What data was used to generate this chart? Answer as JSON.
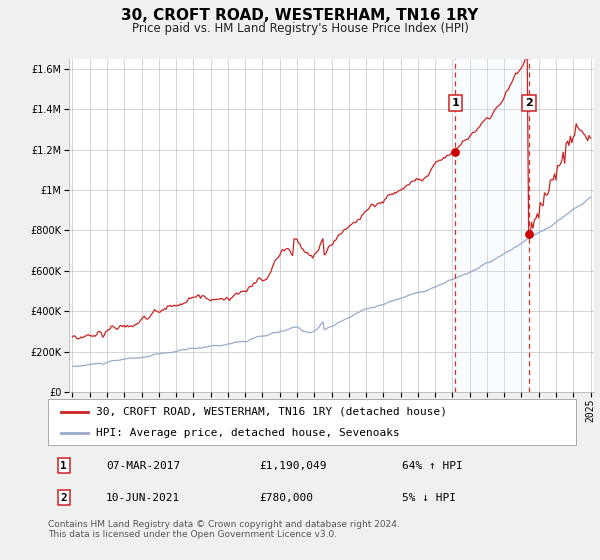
{
  "title": "30, CROFT ROAD, WESTERHAM, TN16 1RY",
  "subtitle": "Price paid vs. HM Land Registry's House Price Index (HPI)",
  "ylim": [
    0,
    1650000
  ],
  "yticks": [
    0,
    200000,
    400000,
    600000,
    800000,
    1000000,
    1200000,
    1400000,
    1600000
  ],
  "ytick_labels": [
    "£0",
    "£200K",
    "£400K",
    "£600K",
    "£800K",
    "£1M",
    "£1.2M",
    "£1.4M",
    "£1.6M"
  ],
  "x_start_year": 1995,
  "x_end_year": 2025,
  "event1_year": 2017.18,
  "event1_value_red": 1190049,
  "event2_year": 2021.44,
  "event2_value_red": 780000,
  "red_color": "#cc2222",
  "blue_color": "#99aacc",
  "event_dot_color": "#cc0000",
  "vline_color": "#cc3333",
  "shade_color": "#ddeeff",
  "legend_entry1": "30, CROFT ROAD, WESTERHAM, TN16 1RY (detached house)",
  "legend_entry2": "HPI: Average price, detached house, Sevenoaks",
  "annotation1_date": "07-MAR-2017",
  "annotation1_price": "£1,190,049",
  "annotation1_hpi": "64% ↑ HPI",
  "annotation2_date": "10-JUN-2021",
  "annotation2_price": "£780,000",
  "annotation2_hpi": "5% ↓ HPI",
  "footer": "Contains HM Land Registry data © Crown copyright and database right 2024.\nThis data is licensed under the Open Government Licence v3.0.",
  "background_color": "#f0f0f0",
  "plot_background_color": "#ffffff",
  "grid_color": "#cccccc",
  "title_fontsize": 11,
  "subtitle_fontsize": 8.5,
  "tick_fontsize": 7,
  "legend_fontsize": 8,
  "annotation_fontsize": 8,
  "footer_fontsize": 6.5
}
